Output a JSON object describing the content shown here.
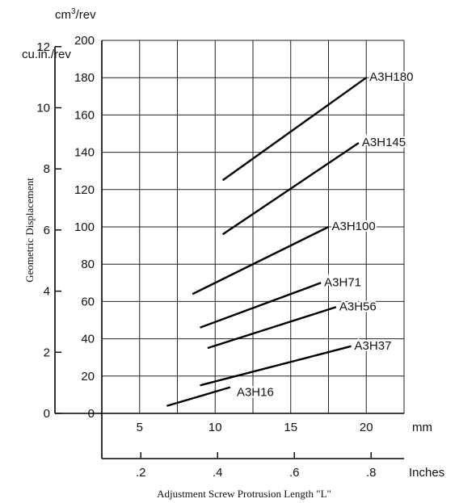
{
  "chart_data": {
    "type": "line",
    "title": "",
    "ylabel": "Geometric Displacement",
    "xlabel": "Adjustment Screw Protrusion Length \"L\"",
    "x_unit_primary": "mm",
    "x_unit_secondary": "Inches",
    "y_unit_metric_base": "cm",
    "y_unit_metric_sup": "3",
    "y_unit_metric_tail": "/rev",
    "y_unit_imperial": "cu.in./rev",
    "xlim_mm": [
      2.5,
      22.5
    ],
    "ylim_cm3": [
      0,
      200
    ],
    "x_ticks_mm": [
      5,
      10,
      15,
      20
    ],
    "x_ticks_mm_labels": [
      "5",
      "10",
      "15",
      "20"
    ],
    "x_ticks_inch": [
      0.2,
      0.4,
      0.6,
      0.8
    ],
    "x_ticks_inch_labels": [
      ".2",
      ".4",
      ".6",
      ".8"
    ],
    "y_ticks_cm3": [
      0,
      20,
      40,
      60,
      80,
      100,
      120,
      140,
      160,
      180,
      200
    ],
    "y_ticks_cm3_labels": [
      "0",
      "20",
      "40",
      "60",
      "80",
      "100",
      "120",
      "140",
      "160",
      "180",
      "200"
    ],
    "y_ticks_cuin": [
      0,
      2,
      4,
      6,
      8,
      10,
      12
    ],
    "y_ticks_cuin_labels": [
      "0",
      "2",
      "4",
      "6",
      "8",
      "10",
      "12"
    ],
    "grid": true,
    "series": [
      {
        "name": "A3H180",
        "x": [
          10.5,
          20.0
        ],
        "y": [
          125,
          180
        ]
      },
      {
        "name": "A3H145",
        "x": [
          10.5,
          19.5
        ],
        "y": [
          96,
          145
        ]
      },
      {
        "name": "A3H100",
        "x": [
          8.5,
          17.5
        ],
        "y": [
          64,
          100
        ]
      },
      {
        "name": "A3H71",
        "x": [
          9.0,
          17.0
        ],
        "y": [
          46,
          70
        ]
      },
      {
        "name": "A3H56",
        "x": [
          9.5,
          18.0
        ],
        "y": [
          35,
          57
        ]
      },
      {
        "name": "A3H37",
        "x": [
          9.0,
          19.0
        ],
        "y": [
          15,
          36
        ]
      },
      {
        "name": "A3H16",
        "x": [
          6.8,
          11.0
        ],
        "y": [
          4,
          14
        ]
      }
    ]
  }
}
